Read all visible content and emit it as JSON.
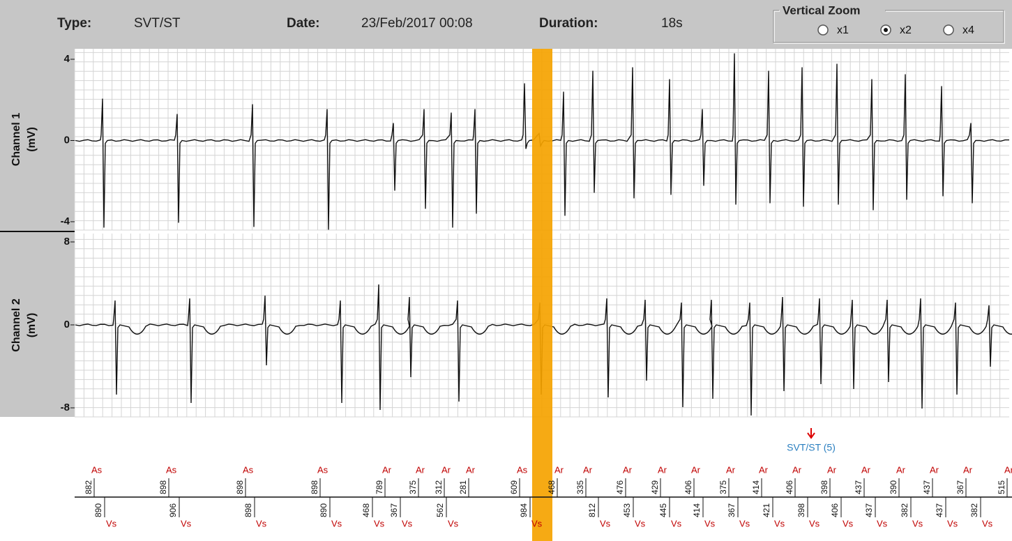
{
  "header": {
    "type_label": "Type:",
    "type_value": "SVT/ST",
    "date_label": "Date:",
    "date_value": "23/Feb/2017 00:08",
    "duration_label": "Duration:",
    "duration_value": "18s"
  },
  "zoom": {
    "title": "Vertical Zoom",
    "options": [
      "x1",
      "x2",
      "x4"
    ],
    "selected": 1
  },
  "channels": [
    {
      "name": "Channel 1",
      "unit": "(mV)",
      "yticks": [
        4,
        0,
        -4
      ]
    },
    {
      "name": "Channel 2",
      "unit": "(mV)",
      "yticks": [
        8,
        0,
        -8
      ]
    }
  ],
  "annotation": "SVT/ST (5)",
  "markers": {
    "atrial": [
      {
        "label": "As",
        "interval": 882
      },
      {
        "label": "As",
        "interval": 898
      },
      {
        "label": "As",
        "interval": 898
      },
      {
        "label": "As",
        "interval": 898
      },
      {
        "label": "Ar",
        "interval": 789
      },
      {
        "label": "Ar",
        "interval": 375
      },
      {
        "label": "Ar",
        "interval": 312
      },
      {
        "label": "Ar",
        "interval": 281
      },
      {
        "label": "As",
        "interval": 609
      },
      {
        "label": "Ar",
        "interval": 468
      },
      {
        "label": "Ar",
        "interval": 335
      },
      {
        "label": "Ar",
        "interval": 476
      },
      {
        "label": "Ar",
        "interval": 429
      },
      {
        "label": "Ar",
        "interval": 406
      },
      {
        "label": "Ar",
        "interval": 375
      },
      {
        "label": "Ar",
        "interval": 414
      },
      {
        "label": "Ar",
        "interval": 406
      },
      {
        "label": "Ar",
        "interval": 398
      },
      {
        "label": "Ar",
        "interval": 437
      },
      {
        "label": "Ar",
        "interval": 390
      },
      {
        "label": "Ar",
        "interval": 437
      },
      {
        "label": "Ar",
        "interval": 367
      },
      {
        "label": "Ar",
        "interval": 515
      }
    ],
    "ventricular": [
      {
        "label": "Vs",
        "interval": 890
      },
      {
        "label": "Vs",
        "interval": 906
      },
      {
        "label": "Vs",
        "interval": 898
      },
      {
        "label": "Vs",
        "interval": 890
      },
      {
        "label": "Vs",
        "interval": 468
      },
      {
        "label": "Vs",
        "interval": 367
      },
      {
        "label": "Vs",
        "interval": 562
      },
      {
        "label": "Vs",
        "interval": 984
      },
      {
        "label": "Vs",
        "interval": 812
      },
      {
        "label": "Vs",
        "interval": 453
      },
      {
        "label": "Vs",
        "interval": 445
      },
      {
        "label": "Vs",
        "interval": 414
      },
      {
        "label": "Vs",
        "interval": 367
      },
      {
        "label": "Vs",
        "interval": 421
      },
      {
        "label": "Vs",
        "interval": 398
      },
      {
        "label": "Vs",
        "interval": 406
      },
      {
        "label": "Vs",
        "interval": 437
      },
      {
        "label": "Vs",
        "interval": 382
      },
      {
        "label": "Vs",
        "interval": 437
      },
      {
        "label": "Vs",
        "interval": 382
      }
    ]
  }
}
